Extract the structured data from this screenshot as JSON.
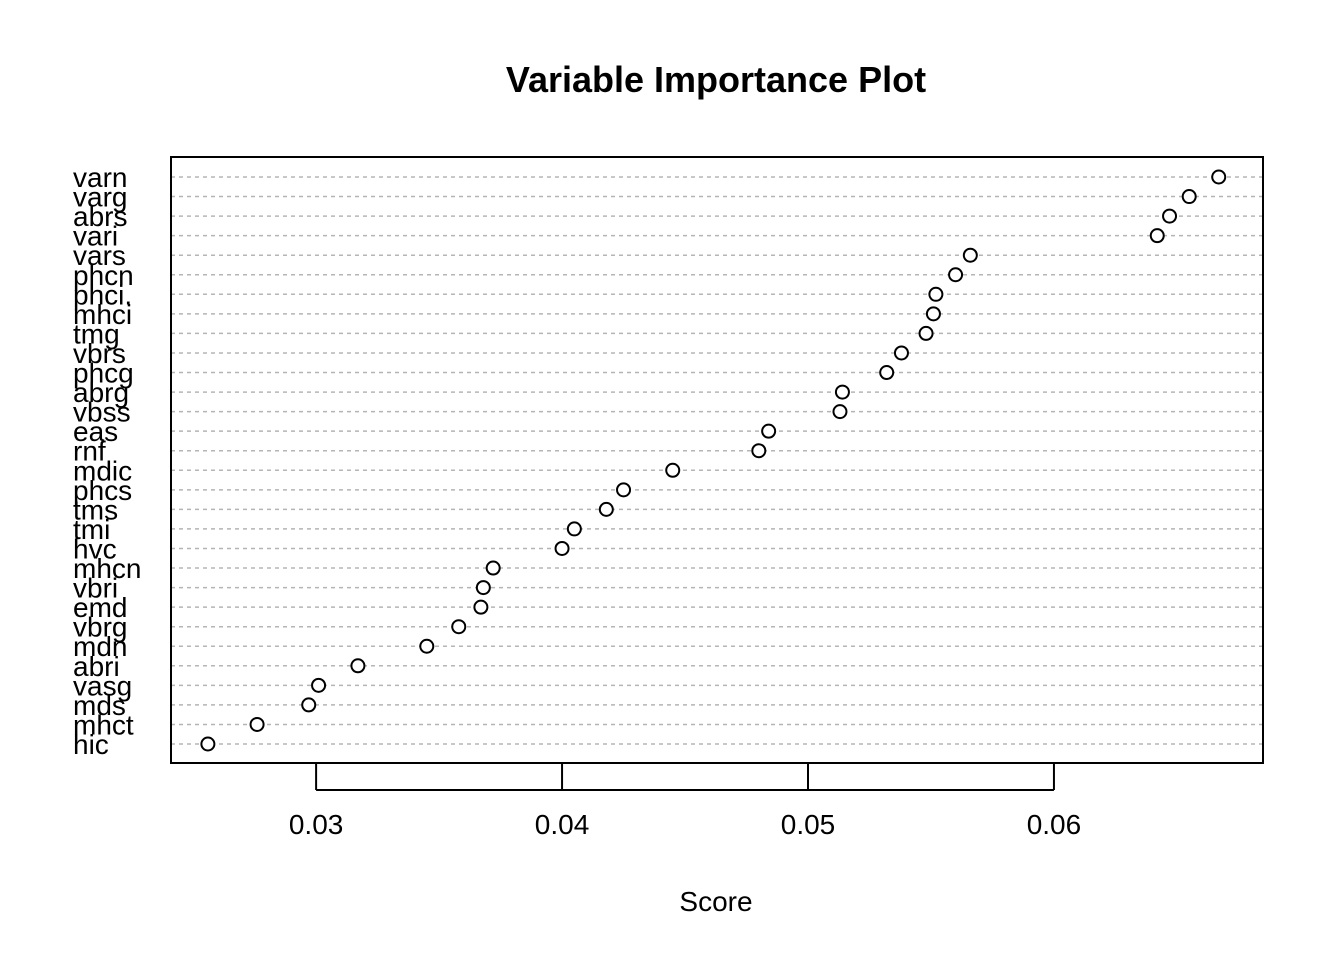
{
  "chart_data": {
    "type": "scatter",
    "title": "Variable Importance Plot",
    "xlabel": "Score",
    "ylabel": "",
    "xlim": [
      0.0241,
      0.0685
    ],
    "xticks": [
      "0.03",
      "0.04",
      "0.05",
      "0.06"
    ],
    "grid": "dotted horizontal lines per variable",
    "categories": [
      "varn",
      "varg",
      "abrs",
      "vari",
      "vars",
      "phcn",
      "phci.",
      "mhci",
      "tmg",
      "vbrs",
      "phcg",
      "abrg",
      "vbss",
      "eas",
      "rnf",
      "mdic",
      "phcs",
      "tms",
      "tmi",
      "hvc",
      "mhcn",
      "vbri",
      "emd",
      "vbrg",
      "mdn",
      "abri",
      "vasg",
      "mds",
      "mhct",
      "hic"
    ],
    "values": [
      0.0667,
      0.0655,
      0.0647,
      0.0642,
      0.0566,
      0.056,
      0.0552,
      0.0551,
      0.0548,
      0.0538,
      0.0532,
      0.0514,
      0.0513,
      0.0484,
      0.048,
      0.0445,
      0.0425,
      0.0418,
      0.0405,
      0.04,
      0.0372,
      0.0368,
      0.0367,
      0.0358,
      0.0345,
      0.0317,
      0.0301,
      0.0297,
      0.0276,
      0.0256
    ]
  }
}
